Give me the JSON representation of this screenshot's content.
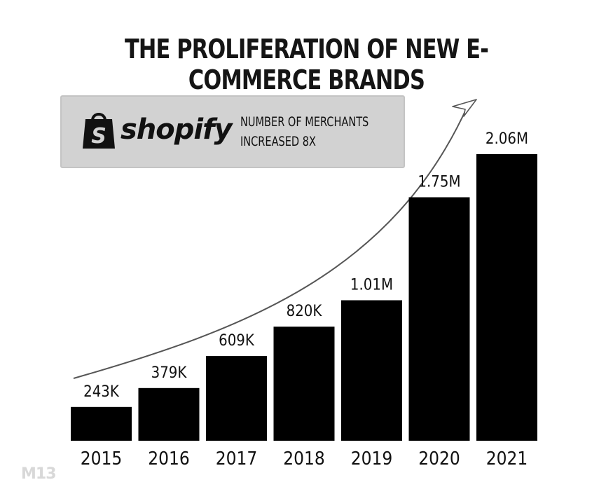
{
  "chart_data": {
    "type": "bar",
    "title": "THE PROLIFERATION OF NEW E-COMMERCE BRANDS",
    "categories": [
      "2015",
      "2016",
      "2017",
      "2018",
      "2019",
      "2020",
      "2021"
    ],
    "values": [
      243000,
      379000,
      609000,
      820000,
      1010000,
      1750000,
      2060000
    ],
    "data_labels": [
      "243K",
      "379K",
      "609K",
      "820K",
      "1.01M",
      "1.75M",
      "2.06M"
    ],
    "ylim": [
      0,
      2060000
    ],
    "grid": false,
    "bar_color": "#000000",
    "annotation": {
      "logo": "shopify",
      "lines": [
        "NUMBER OF MERCHANTS",
        "INCREASED 8X"
      ]
    },
    "trend_arrow": true
  },
  "watermark": "M13",
  "colors": {
    "background": "#ffffff",
    "bars": "#000000",
    "badge": "#d2d2d2",
    "arrow": "#555555"
  }
}
